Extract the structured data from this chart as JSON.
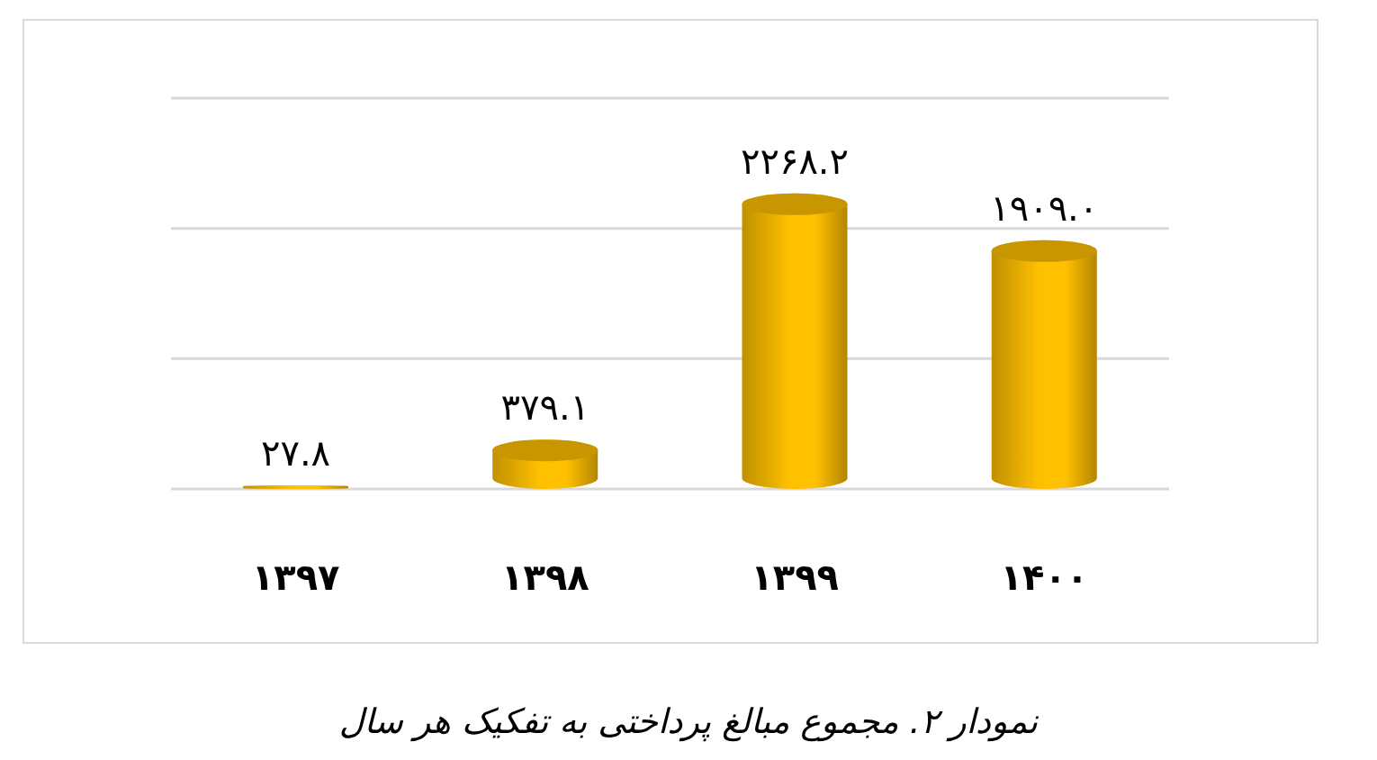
{
  "chart_data": {
    "type": "bar",
    "title": "نمودار ۲. مجموع مبالغ پرداختی به تفکیک هر سال",
    "categories": [
      "۱۳۹۷",
      "۱۳۹۸",
      "۱۳۹۹",
      "۱۴۰۰"
    ],
    "values": [
      27.8,
      379.1,
      2268.2,
      1909.0
    ],
    "value_labels": [
      "۲۷.۸",
      "۳۷۹.۱",
      "۲۲۶۸.۲",
      "۱۹۰۹.۰"
    ],
    "color": "#ffc000",
    "ylim": [
      0,
      3000
    ],
    "yticks": [
      {
        "value": 0,
        "label": null
      },
      {
        "value": 1000,
        "label": null
      },
      {
        "value": 2000,
        "label": null
      },
      {
        "value": 3000,
        "label": null
      }
    ],
    "grid": "y",
    "tick_labels": "x",
    "legend": false
  }
}
